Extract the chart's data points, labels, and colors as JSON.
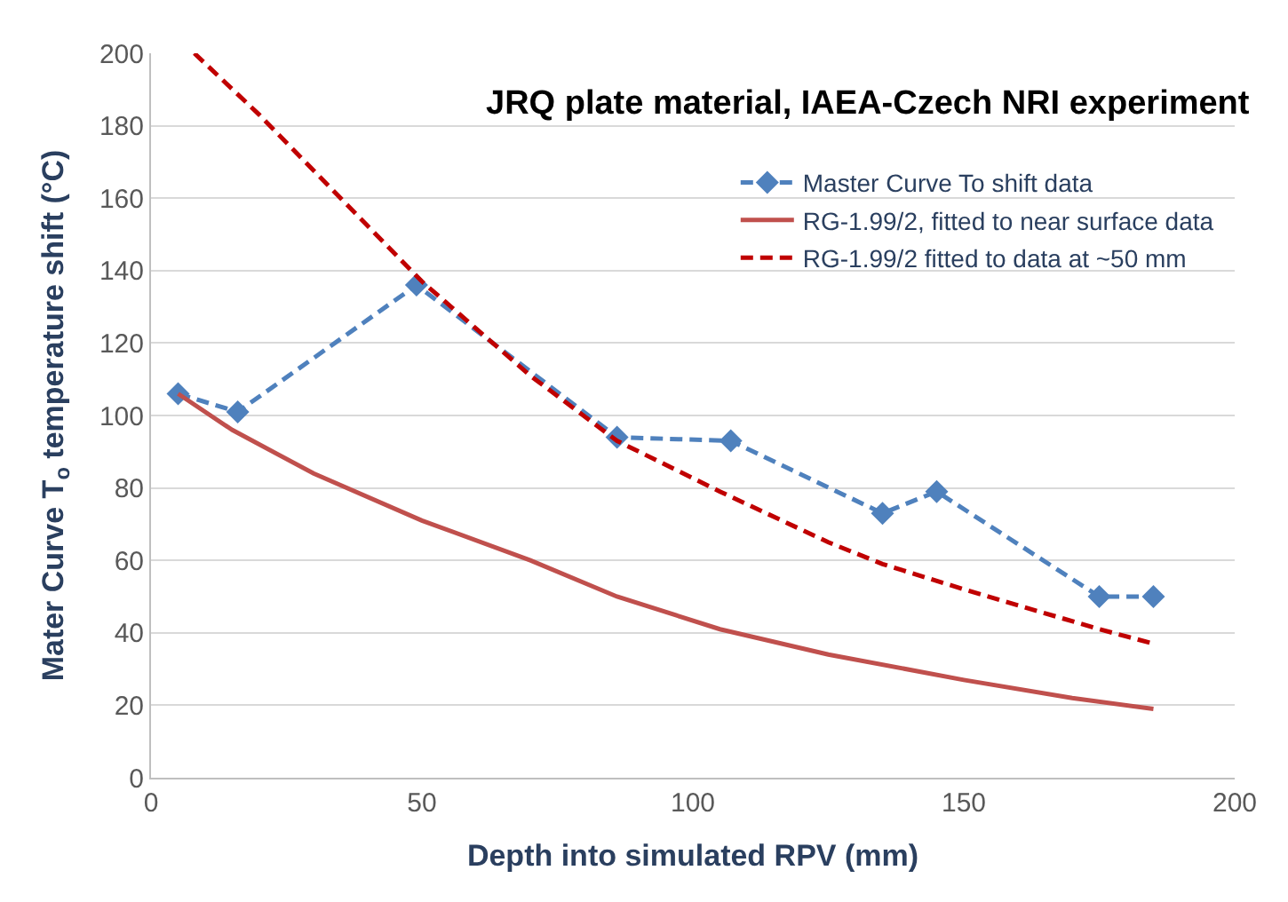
{
  "chart_data": {
    "type": "line",
    "title": "JRQ plate material, IAEA-Czech NRI experiment",
    "xlabel": "Depth into simulated RPV (mm)",
    "ylabel": "Mater Curve T$_{o}$ temperature shift (°C)",
    "xlim": [
      0,
      200
    ],
    "xticks": [
      0,
      50,
      100,
      150,
      200
    ],
    "ylim": [
      0,
      200
    ],
    "yticks": [
      0,
      20,
      40,
      60,
      80,
      100,
      120,
      140,
      160,
      180,
      200
    ],
    "grid": "y",
    "legend": "top right",
    "series": [
      {
        "name": "Master Curve To shift data",
        "color": "#4f81bd",
        "marker": "diamond",
        "line_style": "dashed",
        "x": [
          5,
          16,
          49,
          86,
          107,
          135,
          145,
          175,
          185
        ],
        "values": [
          106,
          101,
          136,
          94,
          93,
          73,
          79,
          50,
          50
        ]
      },
      {
        "name": "RG-1.99/2, fitted to near surface data",
        "color": "#c0504d",
        "marker": "none",
        "line_style": "solid",
        "x": [
          5,
          15,
          30,
          50,
          70,
          86,
          105,
          125,
          150,
          170,
          185
        ],
        "values": [
          106,
          96,
          84,
          71,
          60,
          50,
          41,
          34,
          27,
          22,
          19
        ]
      },
      {
        "name": "RG-1.99/2 fitted to data at ~50 mm",
        "color": "#c00000",
        "marker": "none",
        "line_style": "dashed",
        "x": [
          8,
          20,
          35,
          50,
          70,
          86,
          105,
          125,
          135,
          150,
          175,
          185
        ],
        "values": [
          200,
          183,
          160,
          137,
          111,
          93,
          79,
          65,
          59,
          52,
          41,
          37
        ]
      }
    ]
  }
}
